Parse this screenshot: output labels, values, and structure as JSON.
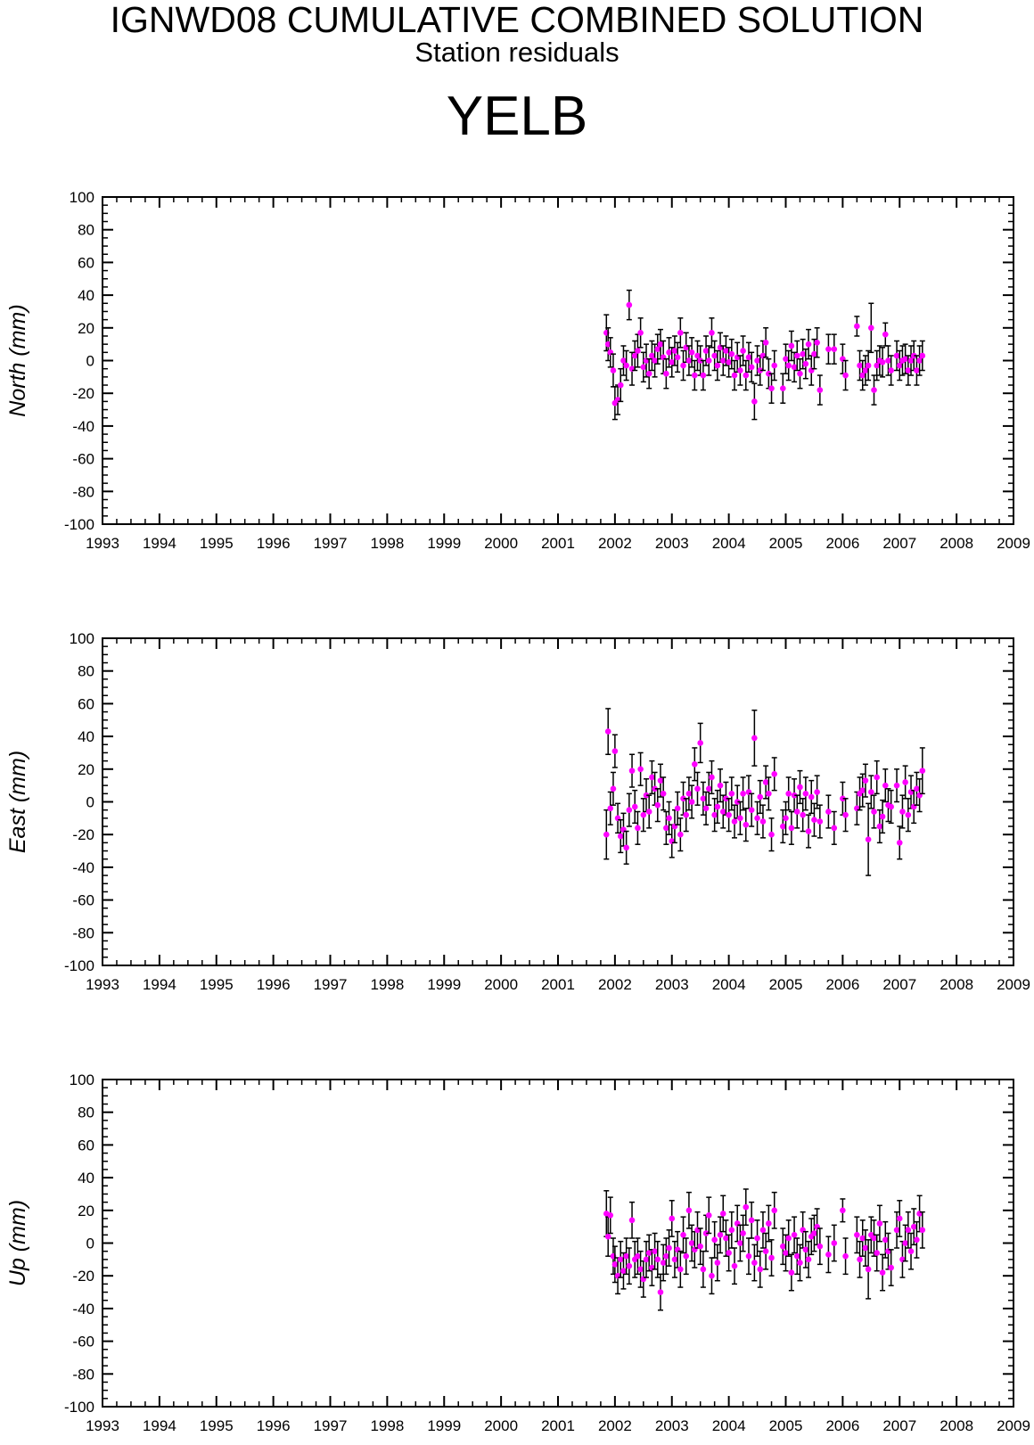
{
  "header": {
    "title": "IGNWD08 CUMULATIVE COMBINED SOLUTION",
    "subtitle": "Station residuals",
    "station": "YELB"
  },
  "colors": {
    "point": "#ff00ff",
    "errorbar": "#000000",
    "axis": "#000000"
  },
  "chart_data": [
    {
      "type": "scatter",
      "ylabel": "North (mm)",
      "xlim": [
        1993,
        2009
      ],
      "ylim": [
        -100,
        100
      ],
      "x_ticks": [
        "1993",
        "1994",
        "1995",
        "1996",
        "1997",
        "1998",
        "1999",
        "2000",
        "2001",
        "2002",
        "2003",
        "2004",
        "2005",
        "2006",
        "2007",
        "2008",
        "2009"
      ],
      "y_ticks": [
        "100",
        "80",
        "60",
        "40",
        "20",
        "0",
        "-20",
        "-40",
        "-60",
        "-80",
        "-100"
      ],
      "grid": false,
      "series": [
        {
          "x": [
            2001.85,
            2001.88,
            2001.92,
            2001.97,
            2002.0,
            2002.05,
            2002.1,
            2002.15,
            2002.2,
            2002.25,
            2002.3,
            2002.35,
            2002.4,
            2002.45,
            2002.5,
            2002.55,
            2002.6,
            2002.65,
            2002.7,
            2002.75,
            2002.8,
            2002.85,
            2002.9,
            2002.95,
            2003.0,
            2003.05,
            2003.1,
            2003.15,
            2003.2,
            2003.25,
            2003.3,
            2003.35,
            2003.4,
            2003.45,
            2003.5,
            2003.55,
            2003.6,
            2003.65,
            2003.7,
            2003.75,
            2003.8,
            2003.85,
            2003.9,
            2003.95,
            2004.0,
            2004.05,
            2004.1,
            2004.15,
            2004.2,
            2004.25,
            2004.3,
            2004.35,
            2004.4,
            2004.45,
            2004.5,
            2004.55,
            2004.6,
            2004.65,
            2004.7,
            2004.75,
            2004.8,
            2004.95,
            2005.0,
            2005.05,
            2005.1,
            2005.15,
            2005.2,
            2005.25,
            2005.3,
            2005.35,
            2005.4,
            2005.45,
            2005.5,
            2005.55,
            2005.6,
            2005.75,
            2005.85,
            2006.0,
            2006.05,
            2006.25,
            2006.3,
            2006.35,
            2006.4,
            2006.45,
            2006.5,
            2006.55,
            2006.6,
            2006.65,
            2006.7,
            2006.75,
            2006.8,
            2006.85,
            2006.95,
            2007.0,
            2007.05,
            2007.1,
            2007.15,
            2007.2,
            2007.25,
            2007.3,
            2007.35,
            2007.4
          ],
          "y": [
            17,
            10,
            5,
            -6,
            -26,
            -24,
            -15,
            0,
            -3,
            34,
            -5,
            3,
            6,
            17,
            -4,
            0,
            -8,
            3,
            0,
            7,
            10,
            2,
            -8,
            5,
            -1,
            6,
            2,
            17,
            -3,
            8,
            0,
            5,
            -9,
            3,
            0,
            -9,
            6,
            0,
            17,
            3,
            -3,
            8,
            0,
            6,
            -1,
            4,
            -9,
            2,
            -6,
            6,
            -9,
            2,
            -4,
            -25,
            0,
            -6,
            3,
            11,
            -8,
            -17,
            -3,
            -17,
            1,
            -3,
            9,
            -4,
            3,
            -8,
            4,
            -2,
            10,
            -6,
            4,
            11,
            -18,
            7,
            7,
            1,
            -9,
            21,
            -3,
            -9,
            -6,
            -3,
            20,
            -18,
            -3,
            0,
            -1,
            16,
            0,
            -6,
            3,
            -3,
            0,
            1,
            -6,
            0,
            3,
            -6,
            0,
            3
          ],
          "err": [
            11,
            10,
            9,
            10,
            10,
            9,
            10,
            9,
            9,
            9,
            10,
            9,
            10,
            9,
            9,
            10,
            9,
            9,
            10,
            9,
            9,
            10,
            9,
            9,
            9,
            9,
            9,
            9,
            9,
            9,
            9,
            9,
            9,
            9,
            9,
            9,
            9,
            9,
            9,
            9,
            9,
            9,
            9,
            9,
            9,
            9,
            9,
            9,
            9,
            9,
            9,
            9,
            9,
            11,
            9,
            9,
            9,
            9,
            9,
            9,
            9,
            9,
            9,
            9,
            9,
            9,
            9,
            9,
            9,
            9,
            9,
            9,
            9,
            9,
            9,
            9,
            9,
            9,
            9,
            6,
            9,
            9,
            9,
            9,
            15,
            9,
            9,
            9,
            9,
            7,
            9,
            9,
            9,
            9,
            9,
            9,
            9,
            9,
            9,
            9,
            9,
            9
          ]
        }
      ]
    },
    {
      "type": "scatter",
      "ylabel": "East (mm)",
      "xlim": [
        1993,
        2009
      ],
      "ylim": [
        -100,
        100
      ],
      "x_ticks": [
        "1993",
        "1994",
        "1995",
        "1996",
        "1997",
        "1998",
        "1999",
        "2000",
        "2001",
        "2002",
        "2003",
        "2004",
        "2005",
        "2006",
        "2007",
        "2008",
        "2009"
      ],
      "y_ticks": [
        "100",
        "80",
        "60",
        "40",
        "20",
        "0",
        "-20",
        "-40",
        "-60",
        "-80",
        "-100"
      ],
      "grid": false,
      "series": [
        {
          "x": [
            2001.85,
            2001.88,
            2001.92,
            2001.97,
            2002.0,
            2002.05,
            2002.1,
            2002.15,
            2002.2,
            2002.25,
            2002.3,
            2002.35,
            2002.4,
            2002.45,
            2002.5,
            2002.55,
            2002.6,
            2002.65,
            2002.7,
            2002.75,
            2002.8,
            2002.85,
            2002.9,
            2002.95,
            2003.0,
            2003.05,
            2003.1,
            2003.15,
            2003.2,
            2003.25,
            2003.3,
            2003.35,
            2003.4,
            2003.45,
            2003.5,
            2003.55,
            2003.6,
            2003.65,
            2003.7,
            2003.75,
            2003.8,
            2003.85,
            2003.9,
            2003.95,
            2004.0,
            2004.05,
            2004.1,
            2004.15,
            2004.2,
            2004.25,
            2004.3,
            2004.35,
            2004.4,
            2004.45,
            2004.5,
            2004.55,
            2004.6,
            2004.65,
            2004.7,
            2004.75,
            2004.8,
            2004.95,
            2005.0,
            2005.05,
            2005.1,
            2005.15,
            2005.2,
            2005.25,
            2005.3,
            2005.35,
            2005.4,
            2005.45,
            2005.5,
            2005.55,
            2005.6,
            2005.75,
            2005.85,
            2006.0,
            2006.05,
            2006.25,
            2006.3,
            2006.35,
            2006.4,
            2006.45,
            2006.5,
            2006.55,
            2006.6,
            2006.65,
            2006.7,
            2006.75,
            2006.8,
            2006.85,
            2006.95,
            2007.0,
            2007.05,
            2007.1,
            2007.15,
            2007.2,
            2007.25,
            2007.3,
            2007.35,
            2007.4
          ],
          "y": [
            -20,
            43,
            -4,
            8,
            31,
            -10,
            -21,
            -17,
            -28,
            -5,
            19,
            -3,
            -16,
            20,
            -8,
            4,
            -6,
            15,
            8,
            -2,
            13,
            5,
            -16,
            -10,
            -24,
            -15,
            -4,
            -20,
            2,
            -8,
            5,
            0,
            23,
            8,
            36,
            2,
            -4,
            8,
            15,
            -8,
            -3,
            10,
            -6,
            2,
            -8,
            5,
            -12,
            0,
            -10,
            5,
            -14,
            6,
            -5,
            39,
            -10,
            3,
            -12,
            12,
            5,
            -20,
            17,
            -15,
            -10,
            5,
            -16,
            4,
            -6,
            9,
            -8,
            5,
            -18,
            3,
            -11,
            6,
            -12,
            -6,
            -16,
            2,
            -8,
            -4,
            5,
            7,
            13,
            -23,
            6,
            -6,
            15,
            -15,
            -9,
            10,
            -2,
            -3,
            10,
            -25,
            -6,
            12,
            -8,
            6,
            -3,
            8,
            4,
            19
          ],
          "err": [
            15,
            14,
            10,
            10,
            10,
            9,
            10,
            10,
            10,
            10,
            10,
            10,
            10,
            10,
            10,
            10,
            10,
            10,
            10,
            10,
            10,
            10,
            10,
            10,
            10,
            10,
            10,
            10,
            10,
            10,
            10,
            10,
            10,
            10,
            12,
            10,
            10,
            10,
            10,
            10,
            10,
            10,
            10,
            10,
            10,
            10,
            10,
            10,
            10,
            10,
            10,
            10,
            10,
            17,
            10,
            10,
            10,
            10,
            10,
            10,
            10,
            10,
            10,
            10,
            10,
            10,
            10,
            10,
            10,
            10,
            10,
            10,
            10,
            10,
            10,
            10,
            10,
            10,
            10,
            10,
            10,
            10,
            10,
            22,
            10,
            10,
            10,
            10,
            10,
            10,
            10,
            10,
            10,
            10,
            10,
            10,
            10,
            10,
            10,
            10,
            10,
            14
          ]
        }
      ]
    },
    {
      "type": "scatter",
      "ylabel": "Up (mm)",
      "xlim": [
        1993,
        2009
      ],
      "ylim": [
        -100,
        100
      ],
      "x_ticks": [
        "1993",
        "1994",
        "1995",
        "1996",
        "1997",
        "1998",
        "1999",
        "2000",
        "2001",
        "2002",
        "2003",
        "2004",
        "2005",
        "2006",
        "2007",
        "2008",
        "2009"
      ],
      "y_ticks": [
        "100",
        "80",
        "60",
        "40",
        "20",
        "0",
        "-20",
        "-40",
        "-60",
        "-80",
        "-100"
      ],
      "grid": false,
      "series": [
        {
          "x": [
            2001.85,
            2001.88,
            2001.92,
            2001.97,
            2002.0,
            2002.05,
            2002.1,
            2002.15,
            2002.2,
            2002.25,
            2002.3,
            2002.35,
            2002.4,
            2002.45,
            2002.5,
            2002.55,
            2002.6,
            2002.65,
            2002.7,
            2002.75,
            2002.8,
            2002.85,
            2002.9,
            2002.95,
            2003.0,
            2003.05,
            2003.1,
            2003.15,
            2003.2,
            2003.25,
            2003.3,
            2003.35,
            2003.4,
            2003.45,
            2003.5,
            2003.55,
            2003.6,
            2003.65,
            2003.7,
            2003.75,
            2003.8,
            2003.85,
            2003.9,
            2003.95,
            2004.0,
            2004.05,
            2004.1,
            2004.15,
            2004.2,
            2004.25,
            2004.3,
            2004.35,
            2004.4,
            2004.45,
            2004.5,
            2004.55,
            2004.6,
            2004.65,
            2004.7,
            2004.75,
            2004.8,
            2004.95,
            2005.0,
            2005.05,
            2005.1,
            2005.15,
            2005.2,
            2005.25,
            2005.3,
            2005.35,
            2005.4,
            2005.45,
            2005.5,
            2005.55,
            2005.6,
            2005.75,
            2005.85,
            2006.0,
            2006.05,
            2006.25,
            2006.3,
            2006.35,
            2006.4,
            2006.45,
            2006.5,
            2006.55,
            2006.6,
            2006.65,
            2006.7,
            2006.75,
            2006.8,
            2006.85,
            2006.95,
            2007.0,
            2007.05,
            2007.1,
            2007.15,
            2007.2,
            2007.25,
            2007.3,
            2007.35,
            2007.4
          ],
          "y": [
            18,
            4,
            17,
            -8,
            -13,
            -20,
            -10,
            -17,
            -8,
            -14,
            14,
            -10,
            -8,
            -16,
            -22,
            -10,
            -6,
            -15,
            -5,
            -10,
            -30,
            -12,
            -8,
            -3,
            15,
            -10,
            -4,
            -16,
            5,
            -8,
            20,
            0,
            -4,
            8,
            -2,
            -16,
            6,
            17,
            -20,
            2,
            -12,
            5,
            18,
            3,
            -6,
            8,
            -14,
            12,
            0,
            6,
            22,
            -8,
            14,
            -12,
            3,
            -16,
            8,
            -5,
            12,
            -9,
            20,
            -2,
            -6,
            3,
            -18,
            5,
            -8,
            -12,
            8,
            -4,
            -10,
            4,
            6,
            10,
            -2,
            -7,
            0,
            20,
            -8,
            5,
            -10,
            3,
            -3,
            -16,
            5,
            3,
            -6,
            12,
            -18,
            2,
            -5,
            -15,
            8,
            15,
            -10,
            0,
            8,
            -5,
            10,
            2,
            18,
            8
          ],
          "err": [
            14,
            12,
            11,
            11,
            11,
            11,
            11,
            11,
            11,
            11,
            11,
            11,
            11,
            11,
            11,
            11,
            11,
            11,
            11,
            11,
            11,
            11,
            11,
            11,
            11,
            11,
            11,
            11,
            11,
            11,
            11,
            11,
            11,
            11,
            11,
            11,
            11,
            11,
            11,
            11,
            11,
            11,
            11,
            11,
            11,
            11,
            11,
            11,
            11,
            11,
            11,
            11,
            11,
            11,
            11,
            11,
            11,
            11,
            11,
            11,
            11,
            11,
            11,
            11,
            11,
            11,
            11,
            11,
            11,
            11,
            11,
            11,
            11,
            11,
            11,
            11,
            11,
            7,
            11,
            11,
            11,
            11,
            11,
            18,
            11,
            11,
            11,
            11,
            11,
            11,
            11,
            11,
            11,
            11,
            11,
            11,
            11,
            11,
            11,
            11,
            11,
            11
          ]
        }
      ]
    }
  ]
}
